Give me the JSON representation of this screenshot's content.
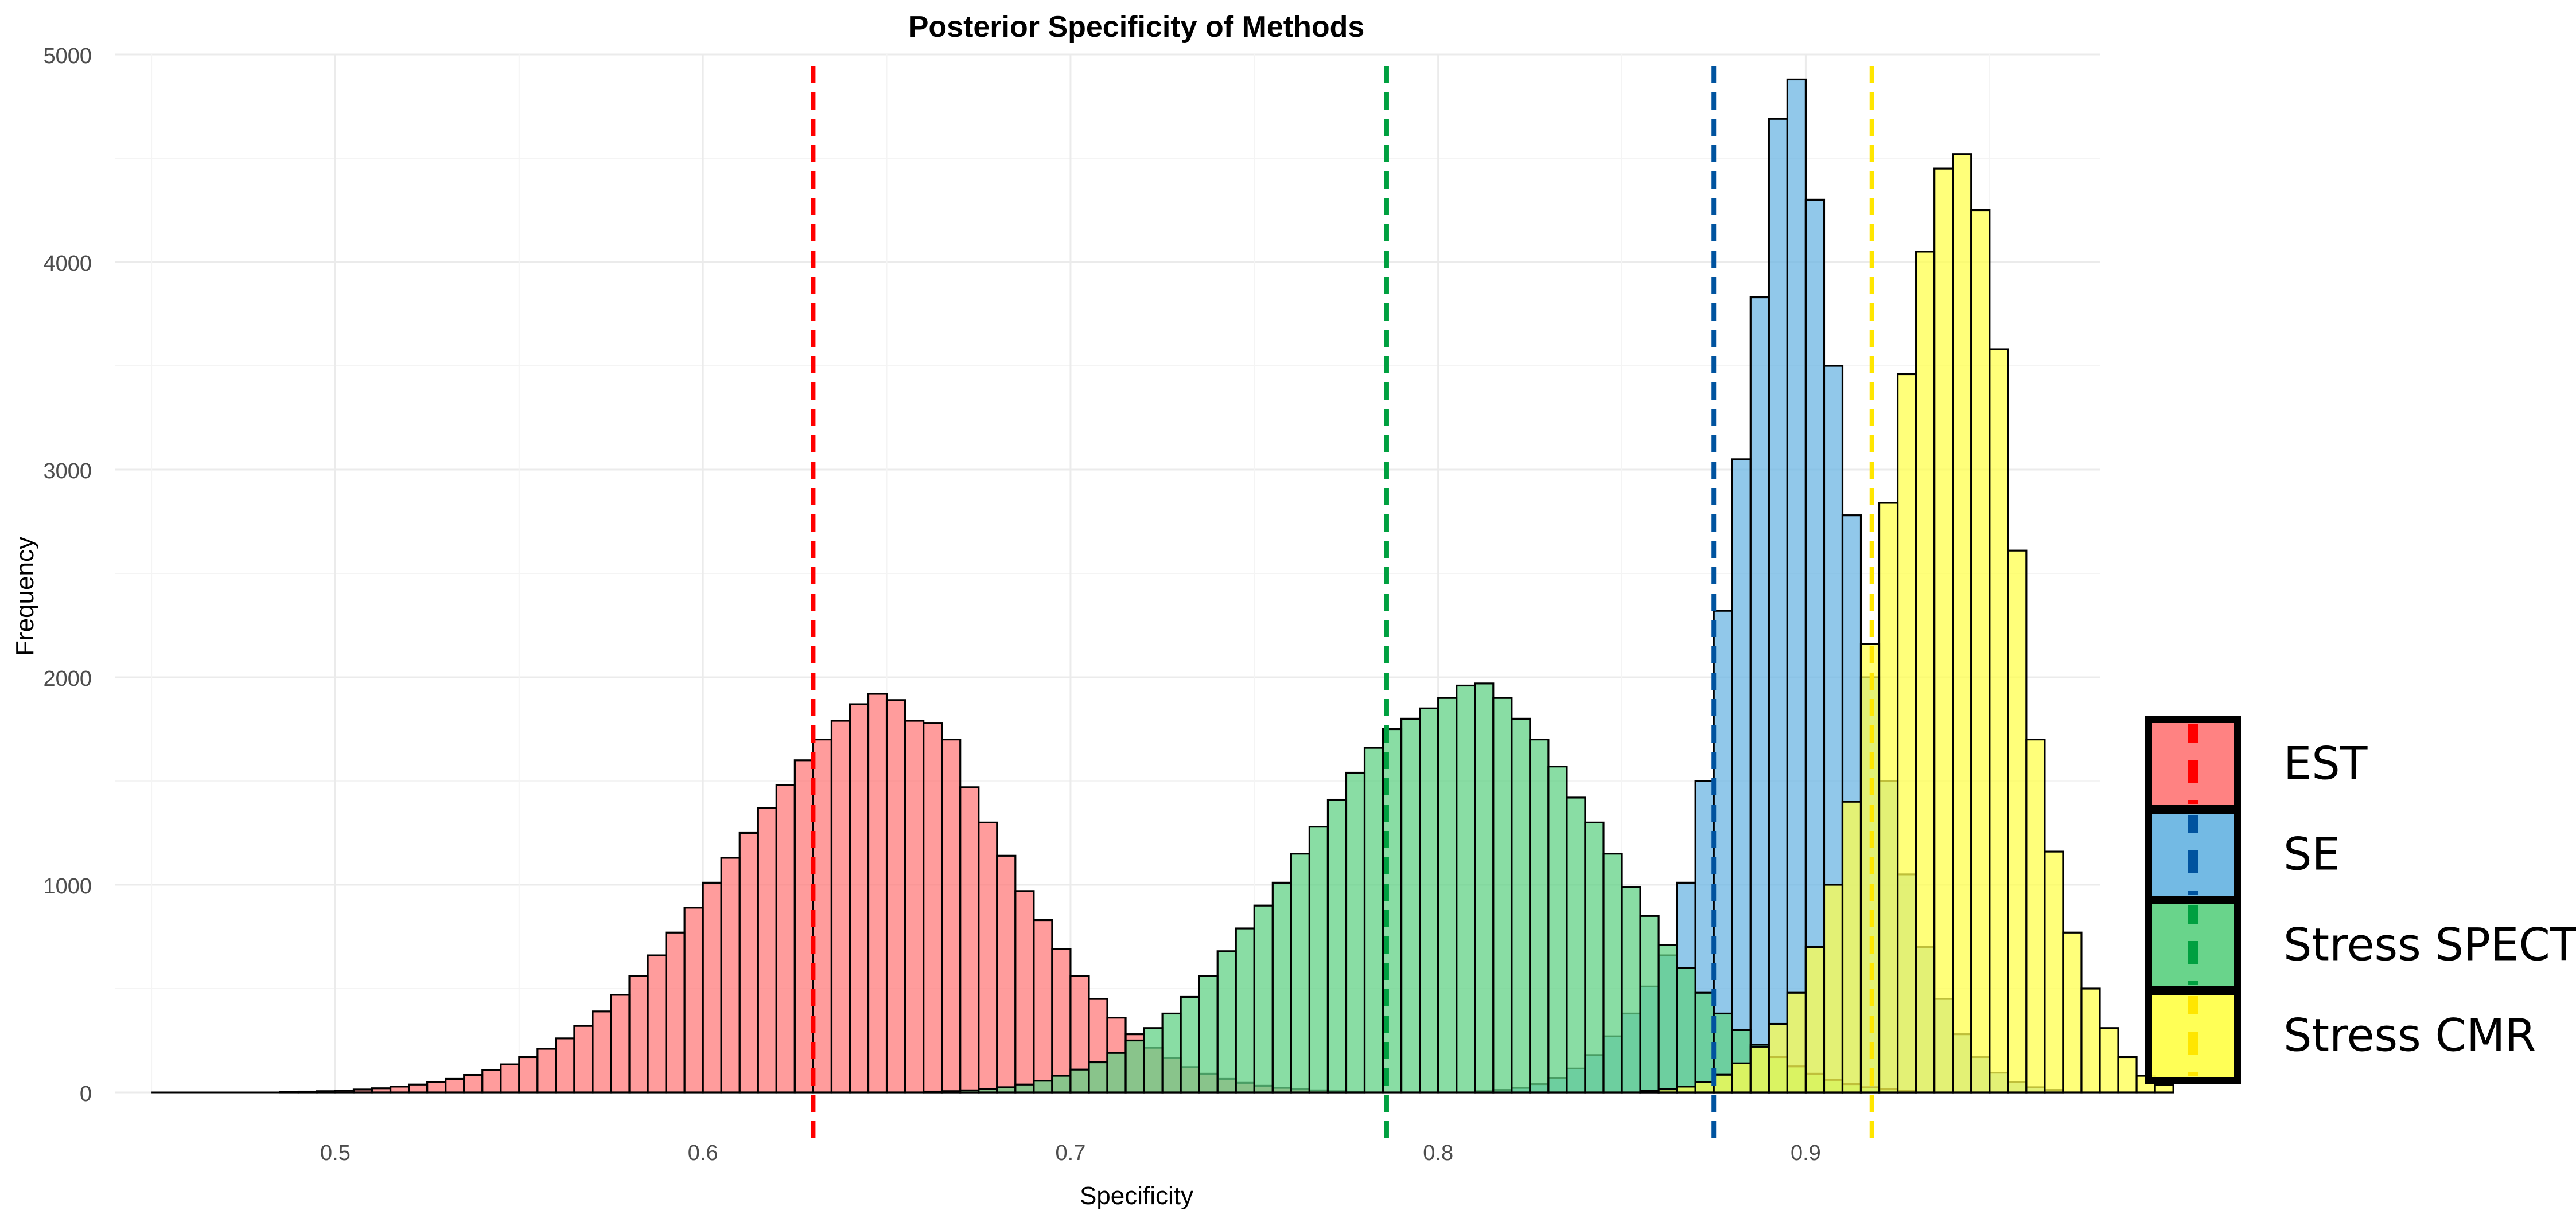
{
  "chart_data": {
    "type": "histogram",
    "title": "Posterior Specificity of Methods",
    "xlabel": "Specificity",
    "ylabel": "Frequency",
    "xlim": [
      0.44,
      0.98
    ],
    "ylim": [
      0,
      5000
    ],
    "x_ticks": [
      "0.5",
      "0.6",
      "0.7",
      "0.8",
      "0.9"
    ],
    "y_ticks": [
      "0",
      "1000",
      "2000",
      "3000",
      "4000",
      "5000"
    ],
    "grid": true,
    "legend_position": "right",
    "bin_width": 0.005,
    "series": [
      {
        "name": "EST",
        "color": "#ff7b7b",
        "line_color": "#ff0000",
        "mean": 0.63,
        "bins": [
          [
            0.485,
            3
          ],
          [
            0.49,
            4
          ],
          [
            0.495,
            6
          ],
          [
            0.5,
            9
          ],
          [
            0.505,
            14
          ],
          [
            0.51,
            20
          ],
          [
            0.515,
            28
          ],
          [
            0.52,
            38
          ],
          [
            0.525,
            50
          ],
          [
            0.53,
            65
          ],
          [
            0.535,
            84
          ],
          [
            0.54,
            107
          ],
          [
            0.545,
            135
          ],
          [
            0.55,
            170
          ],
          [
            0.555,
            210
          ],
          [
            0.56,
            260
          ],
          [
            0.565,
            320
          ],
          [
            0.57,
            390
          ],
          [
            0.575,
            470
          ],
          [
            0.58,
            560
          ],
          [
            0.585,
            660
          ],
          [
            0.59,
            770
          ],
          [
            0.595,
            890
          ],
          [
            0.6,
            1010
          ],
          [
            0.605,
            1130
          ],
          [
            0.61,
            1250
          ],
          [
            0.615,
            1370
          ],
          [
            0.62,
            1480
          ],
          [
            0.625,
            1600
          ],
          [
            0.63,
            1700
          ],
          [
            0.635,
            1790
          ],
          [
            0.64,
            1870
          ],
          [
            0.645,
            1920
          ],
          [
            0.65,
            1890
          ],
          [
            0.655,
            1790
          ],
          [
            0.66,
            1780
          ],
          [
            0.665,
            1700
          ],
          [
            0.67,
            1470
          ],
          [
            0.675,
            1300
          ],
          [
            0.68,
            1140
          ],
          [
            0.685,
            970
          ],
          [
            0.69,
            830
          ],
          [
            0.695,
            690
          ],
          [
            0.7,
            560
          ],
          [
            0.705,
            450
          ],
          [
            0.71,
            360
          ],
          [
            0.715,
            280
          ],
          [
            0.72,
            215
          ],
          [
            0.725,
            165
          ],
          [
            0.73,
            122
          ],
          [
            0.735,
            90
          ],
          [
            0.74,
            65
          ],
          [
            0.745,
            46
          ],
          [
            0.75,
            32
          ],
          [
            0.755,
            22
          ],
          [
            0.76,
            15
          ],
          [
            0.765,
            10
          ],
          [
            0.77,
            6
          ],
          [
            0.775,
            4
          ]
        ]
      },
      {
        "name": "SE",
        "color": "#6cb6e3",
        "line_color": "#00539f",
        "mean": 0.875,
        "bins": [
          [
            0.81,
            6
          ],
          [
            0.815,
            12
          ],
          [
            0.82,
            22
          ],
          [
            0.825,
            40
          ],
          [
            0.83,
            70
          ],
          [
            0.835,
            115
          ],
          [
            0.84,
            180
          ],
          [
            0.845,
            270
          ],
          [
            0.85,
            380
          ],
          [
            0.855,
            510
          ],
          [
            0.86,
            660
          ],
          [
            0.865,
            1010
          ],
          [
            0.87,
            1500
          ],
          [
            0.875,
            2320
          ],
          [
            0.88,
            3050
          ],
          [
            0.885,
            3830
          ],
          [
            0.89,
            4690
          ],
          [
            0.895,
            4880
          ],
          [
            0.9,
            4300
          ],
          [
            0.905,
            3500
          ],
          [
            0.91,
            2780
          ],
          [
            0.915,
            2000
          ],
          [
            0.92,
            1500
          ],
          [
            0.925,
            1050
          ],
          [
            0.93,
            700
          ],
          [
            0.935,
            450
          ],
          [
            0.94,
            280
          ],
          [
            0.945,
            170
          ],
          [
            0.95,
            95
          ],
          [
            0.955,
            50
          ],
          [
            0.96,
            25
          ],
          [
            0.965,
            12
          ]
        ]
      },
      {
        "name": "Stress SPECT",
        "color": "#61d285",
        "line_color": "#00a040",
        "mean": 0.786,
        "bins": [
          [
            0.66,
            4
          ],
          [
            0.665,
            6
          ],
          [
            0.67,
            10
          ],
          [
            0.675,
            16
          ],
          [
            0.68,
            25
          ],
          [
            0.685,
            38
          ],
          [
            0.69,
            56
          ],
          [
            0.695,
            80
          ],
          [
            0.7,
            110
          ],
          [
            0.705,
            145
          ],
          [
            0.71,
            190
          ],
          [
            0.715,
            250
          ],
          [
            0.72,
            310
          ],
          [
            0.725,
            380
          ],
          [
            0.73,
            460
          ],
          [
            0.735,
            560
          ],
          [
            0.74,
            680
          ],
          [
            0.745,
            790
          ],
          [
            0.75,
            900
          ],
          [
            0.755,
            1010
          ],
          [
            0.76,
            1150
          ],
          [
            0.765,
            1280
          ],
          [
            0.77,
            1410
          ],
          [
            0.775,
            1540
          ],
          [
            0.78,
            1660
          ],
          [
            0.785,
            1750
          ],
          [
            0.79,
            1800
          ],
          [
            0.795,
            1850
          ],
          [
            0.8,
            1900
          ],
          [
            0.805,
            1960
          ],
          [
            0.81,
            1970
          ],
          [
            0.815,
            1900
          ],
          [
            0.82,
            1800
          ],
          [
            0.825,
            1700
          ],
          [
            0.83,
            1570
          ],
          [
            0.835,
            1420
          ],
          [
            0.84,
            1300
          ],
          [
            0.845,
            1150
          ],
          [
            0.85,
            990
          ],
          [
            0.855,
            850
          ],
          [
            0.86,
            710
          ],
          [
            0.865,
            600
          ],
          [
            0.87,
            480
          ],
          [
            0.875,
            380
          ],
          [
            0.88,
            300
          ],
          [
            0.885,
            230
          ],
          [
            0.89,
            170
          ],
          [
            0.895,
            125
          ],
          [
            0.9,
            90
          ],
          [
            0.905,
            60
          ],
          [
            0.91,
            40
          ],
          [
            0.915,
            25
          ],
          [
            0.92,
            15
          ],
          [
            0.925,
            8
          ]
        ]
      },
      {
        "name": "Stress CMR",
        "color": "#ffff4d",
        "line_color": "#ffe600",
        "mean": 0.918,
        "bins": [
          [
            0.855,
            8
          ],
          [
            0.86,
            15
          ],
          [
            0.865,
            28
          ],
          [
            0.87,
            50
          ],
          [
            0.875,
            85
          ],
          [
            0.88,
            140
          ],
          [
            0.885,
            220
          ],
          [
            0.89,
            330
          ],
          [
            0.895,
            480
          ],
          [
            0.9,
            700
          ],
          [
            0.905,
            1000
          ],
          [
            0.91,
            1400
          ],
          [
            0.915,
            2160
          ],
          [
            0.92,
            2840
          ],
          [
            0.925,
            3460
          ],
          [
            0.93,
            4050
          ],
          [
            0.935,
            4450
          ],
          [
            0.94,
            4520
          ],
          [
            0.945,
            4250
          ],
          [
            0.95,
            3580
          ],
          [
            0.955,
            2610
          ],
          [
            0.96,
            1700
          ],
          [
            0.965,
            1160
          ],
          [
            0.97,
            770
          ],
          [
            0.975,
            500
          ],
          [
            0.98,
            310
          ],
          [
            0.985,
            170
          ],
          [
            0.99,
            80
          ],
          [
            0.995,
            35
          ]
        ]
      }
    ]
  }
}
